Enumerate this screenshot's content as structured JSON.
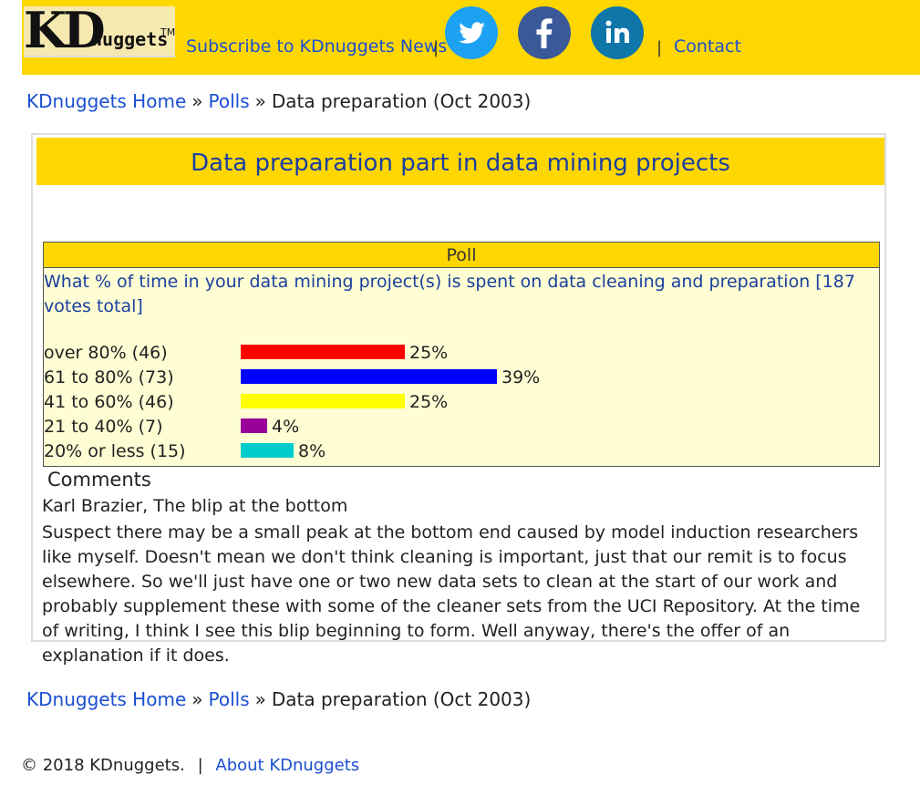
{
  "header": {
    "logo": "KDnuggets",
    "subscribe_label": "Subscribe to KDnuggets News",
    "separator": "|",
    "social": [
      {
        "icon": "twitter-icon",
        "color": "#1da1f2"
      },
      {
        "icon": "facebook-icon",
        "color": "#3b5998"
      },
      {
        "icon": "linkedin-icon",
        "color": "#0e76a8"
      }
    ],
    "contact_label": "Contact"
  },
  "breadcrumb": {
    "home": "KDnuggets Home",
    "polls": "Polls",
    "current": "Data preparation (Oct 2003)",
    "sep": "»"
  },
  "page": {
    "title": "Data preparation part in data mining projects"
  },
  "poll": {
    "header": "Poll",
    "question": "What % of time in your data mining project(s) is spent on data cleaning and preparation [187 votes total]",
    "options": [
      {
        "label": "over 80% (46)",
        "percent": 25,
        "pct_label": "25%",
        "color": "#ff0000"
      },
      {
        "label": "61 to 80% (73)",
        "percent": 39,
        "pct_label": "39%",
        "color": "#0000ff"
      },
      {
        "label": "41 to 60% (46)",
        "percent": 25,
        "pct_label": "25%",
        "color": "#ffff00"
      },
      {
        "label": "21 to 40% (7)",
        "percent": 4,
        "pct_label": "4%",
        "color": "#990099"
      },
      {
        "label": "20% or less (15)",
        "percent": 8,
        "pct_label": "8%",
        "color": "#00cccc"
      }
    ]
  },
  "comments": {
    "title": "Comments",
    "author_line": "Karl Brazier, The blip at the bottom",
    "body": "Suspect there may be a small peak at the bottom end caused by model induction researchers like myself. Doesn't mean we don't think cleaning is important, just that our remit is to focus elsewhere. So we'll just have one or two new data sets to clean at the start of our work and probably supplement these with some of the cleaner sets from the UCI Repository. At the time of writing, I think I see this blip beginning to form. Well anyway, there's the offer of an explanation if it does."
  },
  "footer": {
    "copyright": "© 2018 KDnuggets.",
    "sep": "|",
    "about_label": "About KDnuggets"
  }
}
